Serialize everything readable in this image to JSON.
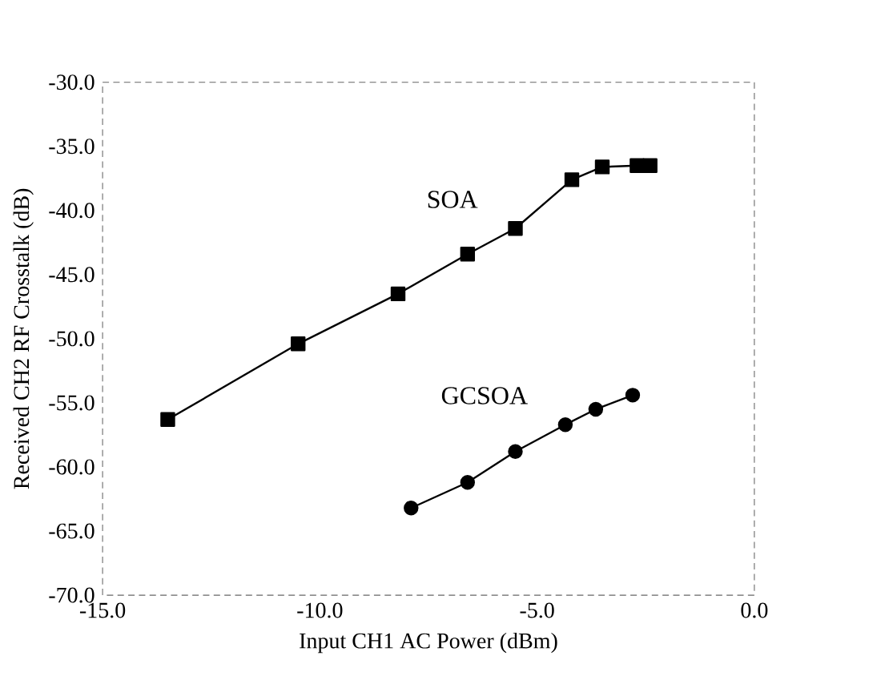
{
  "chart_data": {
    "type": "line",
    "xlabel": "Input CH1 AC Power (dBm)",
    "ylabel": "Received CH2 RF Crosstalk (dB)",
    "xlim": [
      -15,
      0
    ],
    "ylim": [
      -70,
      -30
    ],
    "xticks": [
      {
        "value": -15,
        "label": "-15.0"
      },
      {
        "value": -10,
        "label": "-10.0"
      },
      {
        "value": -5,
        "label": "-5.0"
      },
      {
        "value": 0,
        "label": "0.0"
      }
    ],
    "yticks": [
      {
        "value": -70,
        "label": "-70.0"
      },
      {
        "value": -65,
        "label": "-65.0"
      },
      {
        "value": -60,
        "label": "-60.0"
      },
      {
        "value": -55,
        "label": "-55.0"
      },
      {
        "value": -50,
        "label": "-50.0"
      },
      {
        "value": -45,
        "label": "-45.0"
      },
      {
        "value": -40,
        "label": "-40.0"
      },
      {
        "value": -35,
        "label": "-35.0"
      },
      {
        "value": -30,
        "label": "-30.0"
      }
    ],
    "grid": false,
    "legend": false,
    "line_style": "solid",
    "series": [
      {
        "name": "SOA",
        "color": "#000000",
        "marker": "square",
        "x": [
          -13.5,
          -10.5,
          -8.2,
          -6.6,
          -5.5,
          -4.2,
          -3.5,
          -2.7,
          -2.4
        ],
        "values": [
          -56.3,
          -50.4,
          -46.5,
          -43.4,
          -41.4,
          -37.6,
          -36.6,
          -36.5,
          -36.5
        ]
      },
      {
        "name": "GCSOA",
        "color": "#000000",
        "marker": "circle",
        "x": [
          -7.9,
          -6.6,
          -5.5,
          -4.35,
          -3.65,
          -2.8
        ],
        "values": [
          -63.2,
          -61.2,
          -58.8,
          -56.7,
          -55.5,
          -54.4
        ]
      }
    ]
  }
}
